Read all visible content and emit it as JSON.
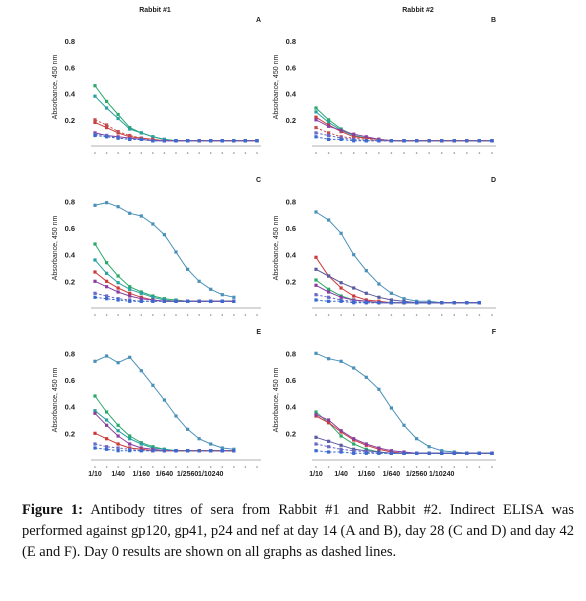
{
  "chart_data": [
    {
      "panel": "A",
      "column": "Rabbit #1",
      "type": "line",
      "ylabel": "Absorbance, 450 nm",
      "yticks": [
        0.2,
        0.4,
        0.6,
        0.8
      ],
      "ylim": [
        0,
        0.9
      ],
      "x_count": 15,
      "xtick_labels_shown": false,
      "series": [
        {
          "color": "#2ca86a",
          "dashed": false,
          "values": [
            0.46,
            0.34,
            0.24,
            0.14,
            0.1,
            0.07,
            0.05,
            0.04,
            0.04,
            0.04,
            0.04,
            0.04,
            0.04,
            0.04,
            0.04
          ]
        },
        {
          "color": "#27a0a0",
          "dashed": false,
          "values": [
            0.38,
            0.29,
            0.21,
            0.13,
            0.1,
            0.07,
            0.05,
            0.04,
            0.04,
            0.04,
            0.04,
            0.04,
            0.04,
            0.04,
            0.04
          ]
        },
        {
          "color": "#cc3a3a",
          "dashed": false,
          "values": [
            0.18,
            0.14,
            0.1,
            0.07,
            0.06,
            0.05,
            0.04,
            0.04,
            0.04,
            0.04,
            0.04,
            0.04,
            0.04,
            0.04,
            0.04
          ]
        },
        {
          "color": "#8a3fa0",
          "dashed": false,
          "values": [
            0.1,
            0.08,
            0.07,
            0.06,
            0.05,
            0.04,
            0.04,
            0.04,
            0.04,
            0.04,
            0.04,
            0.04,
            0.04,
            0.04,
            0.04
          ]
        },
        {
          "color": "#c05050",
          "dashed": true,
          "values": [
            0.2,
            0.16,
            0.11,
            0.08,
            0.06,
            0.05,
            0.04,
            0.04,
            0.04,
            0.04,
            0.04,
            0.04,
            0.04,
            0.04,
            0.04
          ]
        },
        {
          "color": "#6a6ac8",
          "dashed": true,
          "values": [
            0.09,
            0.08,
            0.06,
            0.05,
            0.05,
            0.04,
            0.04,
            0.04,
            0.04,
            0.04,
            0.04,
            0.04,
            0.04,
            0.04,
            0.04
          ]
        },
        {
          "color": "#3a6ad0",
          "dashed": true,
          "values": [
            0.08,
            0.07,
            0.06,
            0.05,
            0.05,
            0.04,
            0.04,
            0.04,
            0.04,
            0.04,
            0.04,
            0.04,
            0.04,
            0.04,
            0.04
          ]
        }
      ]
    },
    {
      "panel": "B",
      "column": "Rabbit #2",
      "type": "line",
      "ylabel": "Absorbance, 450 nm",
      "yticks": [
        0.2,
        0.4,
        0.6,
        0.8
      ],
      "ylim": [
        0,
        0.9
      ],
      "x_count": 15,
      "xtick_labels_shown": false,
      "series": [
        {
          "color": "#2ca86a",
          "dashed": false,
          "values": [
            0.29,
            0.2,
            0.13,
            0.08,
            0.06,
            0.05,
            0.04,
            0.04,
            0.04,
            0.04,
            0.04,
            0.04,
            0.04,
            0.04,
            0.04
          ]
        },
        {
          "color": "#27a0a0",
          "dashed": false,
          "values": [
            0.26,
            0.18,
            0.12,
            0.08,
            0.06,
            0.05,
            0.04,
            0.04,
            0.04,
            0.04,
            0.04,
            0.04,
            0.04,
            0.04,
            0.04
          ]
        },
        {
          "color": "#cc3a3a",
          "dashed": false,
          "values": [
            0.22,
            0.16,
            0.11,
            0.07,
            0.06,
            0.05,
            0.04,
            0.04,
            0.04,
            0.04,
            0.04,
            0.04,
            0.04,
            0.04,
            0.04
          ]
        },
        {
          "color": "#8a3fa0",
          "dashed": false,
          "values": [
            0.2,
            0.15,
            0.12,
            0.09,
            0.07,
            0.05,
            0.04,
            0.04,
            0.04,
            0.04,
            0.04,
            0.04,
            0.04,
            0.04,
            0.04
          ]
        },
        {
          "color": "#c05050",
          "dashed": true,
          "values": [
            0.14,
            0.1,
            0.07,
            0.06,
            0.05,
            0.04,
            0.04,
            0.04,
            0.04,
            0.04,
            0.04,
            0.04,
            0.04,
            0.04,
            0.04
          ]
        },
        {
          "color": "#6a6ac8",
          "dashed": true,
          "values": [
            0.1,
            0.08,
            0.06,
            0.05,
            0.04,
            0.04,
            0.04,
            0.04,
            0.04,
            0.04,
            0.04,
            0.04,
            0.04,
            0.04,
            0.04
          ]
        },
        {
          "color": "#3a6ad0",
          "dashed": true,
          "values": [
            0.07,
            0.05,
            0.05,
            0.04,
            0.04,
            0.04,
            0.04,
            0.04,
            0.04,
            0.04,
            0.04,
            0.04,
            0.04,
            0.04,
            0.04
          ]
        }
      ]
    },
    {
      "panel": "C",
      "column": "Rabbit #1",
      "type": "line",
      "ylabel": "Absorbance, 450 nm",
      "yticks": [
        0.2,
        0.4,
        0.6,
        0.8
      ],
      "ylim": [
        0,
        0.9
      ],
      "x_count": 15,
      "xtick_labels_shown": false,
      "series": [
        {
          "color": "#4a90b8",
          "dashed": false,
          "values": [
            0.77,
            0.79,
            0.76,
            0.71,
            0.69,
            0.63,
            0.55,
            0.42,
            0.29,
            0.2,
            0.14,
            0.1,
            0.08
          ]
        },
        {
          "color": "#2ca86a",
          "dashed": false,
          "values": [
            0.48,
            0.34,
            0.24,
            0.16,
            0.12,
            0.09,
            0.07,
            0.06,
            0.05,
            0.05,
            0.05,
            0.05,
            0.05
          ]
        },
        {
          "color": "#27a0a0",
          "dashed": false,
          "values": [
            0.36,
            0.26,
            0.19,
            0.14,
            0.11,
            0.08,
            0.06,
            0.05,
            0.05,
            0.05,
            0.05,
            0.05,
            0.05
          ]
        },
        {
          "color": "#cc3a3a",
          "dashed": false,
          "values": [
            0.27,
            0.2,
            0.15,
            0.11,
            0.08,
            0.06,
            0.05,
            0.05,
            0.05,
            0.05,
            0.05,
            0.05,
            0.05
          ]
        },
        {
          "color": "#8a3fa0",
          "dashed": false,
          "values": [
            0.2,
            0.16,
            0.12,
            0.09,
            0.07,
            0.06,
            0.05,
            0.05,
            0.05,
            0.05,
            0.05,
            0.05,
            0.05
          ]
        },
        {
          "color": "#6a6ac8",
          "dashed": true,
          "values": [
            0.11,
            0.09,
            0.07,
            0.06,
            0.05,
            0.05,
            0.05,
            0.05,
            0.05,
            0.05,
            0.05,
            0.05,
            0.05
          ]
        },
        {
          "color": "#3a6ad0",
          "dashed": true,
          "values": [
            0.08,
            0.07,
            0.06,
            0.05,
            0.05,
            0.05,
            0.05,
            0.05,
            0.05,
            0.05,
            0.05,
            0.05,
            0.05
          ]
        }
      ]
    },
    {
      "panel": "D",
      "column": "Rabbit #2",
      "type": "line",
      "ylabel": "Absorbance, 450 nm",
      "yticks": [
        0.2,
        0.4,
        0.6,
        0.8
      ],
      "ylim": [
        0,
        0.9
      ],
      "x_count": 15,
      "xtick_labels_shown": false,
      "series": [
        {
          "color": "#4a90b8",
          "dashed": false,
          "values": [
            0.72,
            0.66,
            0.56,
            0.4,
            0.28,
            0.18,
            0.11,
            0.07,
            0.05,
            0.05,
            0.04,
            0.04,
            0.04,
            0.04
          ]
        },
        {
          "color": "#cc3a3a",
          "dashed": false,
          "values": [
            0.38,
            0.24,
            0.15,
            0.09,
            0.06,
            0.05,
            0.04,
            0.04,
            0.04,
            0.04,
            0.04,
            0.04,
            0.04,
            0.04
          ]
        },
        {
          "color": "#5a5aa0",
          "dashed": false,
          "values": [
            0.29,
            0.24,
            0.19,
            0.15,
            0.11,
            0.08,
            0.06,
            0.05,
            0.04,
            0.04,
            0.04,
            0.04,
            0.04,
            0.04
          ]
        },
        {
          "color": "#2ca86a",
          "dashed": false,
          "values": [
            0.21,
            0.14,
            0.09,
            0.06,
            0.05,
            0.04,
            0.04,
            0.04,
            0.04,
            0.04,
            0.04,
            0.04,
            0.04,
            0.04
          ]
        },
        {
          "color": "#8a3fa0",
          "dashed": false,
          "values": [
            0.17,
            0.12,
            0.08,
            0.06,
            0.05,
            0.04,
            0.04,
            0.04,
            0.04,
            0.04,
            0.04,
            0.04,
            0.04,
            0.04
          ]
        },
        {
          "color": "#6a6ac8",
          "dashed": true,
          "values": [
            0.1,
            0.08,
            0.06,
            0.05,
            0.04,
            0.04,
            0.04,
            0.04,
            0.04,
            0.04,
            0.04,
            0.04,
            0.04,
            0.04
          ]
        },
        {
          "color": "#3a6ad0",
          "dashed": true,
          "values": [
            0.06,
            0.05,
            0.05,
            0.04,
            0.04,
            0.04,
            0.04,
            0.04,
            0.04,
            0.04,
            0.04,
            0.04,
            0.04,
            0.04
          ]
        }
      ]
    },
    {
      "panel": "E",
      "column": "Rabbit #1",
      "type": "line",
      "ylabel": "Absorbance, 450 nm",
      "yticks": [
        0.2,
        0.4,
        0.6,
        0.8
      ],
      "ylim": [
        0,
        0.9
      ],
      "x_count": 15,
      "xtick_labels_shown": true,
      "series": [
        {
          "color": "#4a90b8",
          "dashed": false,
          "values": [
            0.74,
            0.78,
            0.73,
            0.77,
            0.67,
            0.56,
            0.45,
            0.33,
            0.23,
            0.16,
            0.12,
            0.09,
            0.08
          ]
        },
        {
          "color": "#2ca86a",
          "dashed": false,
          "values": [
            0.48,
            0.36,
            0.26,
            0.18,
            0.13,
            0.1,
            0.08,
            0.07,
            0.07,
            0.07,
            0.07,
            0.07,
            0.07
          ]
        },
        {
          "color": "#27a0a0",
          "dashed": false,
          "values": [
            0.37,
            0.3,
            0.22,
            0.16,
            0.12,
            0.09,
            0.08,
            0.07,
            0.07,
            0.07,
            0.07,
            0.07,
            0.07
          ]
        },
        {
          "color": "#8a3fa0",
          "dashed": false,
          "values": [
            0.35,
            0.26,
            0.18,
            0.12,
            0.09,
            0.08,
            0.07,
            0.07,
            0.07,
            0.07,
            0.07,
            0.07,
            0.07
          ]
        },
        {
          "color": "#cc3a3a",
          "dashed": false,
          "values": [
            0.2,
            0.16,
            0.12,
            0.09,
            0.08,
            0.07,
            0.07,
            0.07,
            0.07,
            0.07,
            0.07,
            0.07,
            0.07
          ]
        },
        {
          "color": "#6a6ac8",
          "dashed": true,
          "values": [
            0.12,
            0.1,
            0.09,
            0.08,
            0.07,
            0.07,
            0.07,
            0.07,
            0.07,
            0.07,
            0.07,
            0.07,
            0.07
          ]
        },
        {
          "color": "#3a6ad0",
          "dashed": true,
          "values": [
            0.09,
            0.08,
            0.07,
            0.07,
            0.07,
            0.07,
            0.07,
            0.07,
            0.07,
            0.07,
            0.07,
            0.07,
            0.07
          ]
        }
      ]
    },
    {
      "panel": "F",
      "column": "Rabbit #2",
      "type": "line",
      "ylabel": "Absorbance, 450 nm",
      "yticks": [
        0.2,
        0.4,
        0.6,
        0.8
      ],
      "ylim": [
        0,
        0.9
      ],
      "x_count": 15,
      "xtick_labels_shown": true,
      "series": [
        {
          "color": "#4a90b8",
          "dashed": false,
          "values": [
            0.8,
            0.76,
            0.74,
            0.69,
            0.62,
            0.53,
            0.39,
            0.26,
            0.16,
            0.1,
            0.07,
            0.06,
            0.05,
            0.05,
            0.05
          ]
        },
        {
          "color": "#2ca86a",
          "dashed": false,
          "values": [
            0.36,
            0.28,
            0.18,
            0.12,
            0.08,
            0.06,
            0.05,
            0.05,
            0.05,
            0.05,
            0.05,
            0.05,
            0.05,
            0.05,
            0.05
          ]
        },
        {
          "color": "#cc3a3a",
          "dashed": false,
          "values": [
            0.33,
            0.28,
            0.21,
            0.15,
            0.11,
            0.08,
            0.06,
            0.05,
            0.05,
            0.05,
            0.05,
            0.05,
            0.05,
            0.05,
            0.05
          ]
        },
        {
          "color": "#8a3fa0",
          "dashed": false,
          "values": [
            0.34,
            0.3,
            0.22,
            0.16,
            0.12,
            0.09,
            0.07,
            0.06,
            0.05,
            0.05,
            0.05,
            0.05,
            0.05,
            0.05,
            0.05
          ]
        },
        {
          "color": "#5a5aa0",
          "dashed": false,
          "values": [
            0.17,
            0.14,
            0.11,
            0.08,
            0.07,
            0.06,
            0.05,
            0.05,
            0.05,
            0.05,
            0.05,
            0.05,
            0.05,
            0.05,
            0.05
          ]
        },
        {
          "color": "#6a6ac8",
          "dashed": true,
          "values": [
            0.12,
            0.1,
            0.08,
            0.07,
            0.06,
            0.05,
            0.05,
            0.05,
            0.05,
            0.05,
            0.05,
            0.05,
            0.05,
            0.05,
            0.05
          ]
        },
        {
          "color": "#3a6ad0",
          "dashed": true,
          "values": [
            0.07,
            0.06,
            0.06,
            0.05,
            0.05,
            0.05,
            0.05,
            0.05,
            0.05,
            0.05,
            0.05,
            0.05,
            0.05,
            0.05,
            0.05
          ]
        }
      ]
    }
  ],
  "column_titles": [
    "Rabbit #1",
    "Rabbit #2"
  ],
  "xtick_labels": [
    "1/10",
    "1/40",
    "1/160",
    "1/640",
    "1/2560",
    "1/10240"
  ],
  "caption": {
    "label": "Figure 1:",
    "text": " Antibody titres of sera from Rabbit #1 and Rabbit #2. Indirect ELISA was performed against gp120, gp41, p24 and nef at day 14 (A and B), day 28 (C and D) and day 42 (E and F). Day 0 results are shown on all graphs as dashed lines."
  }
}
